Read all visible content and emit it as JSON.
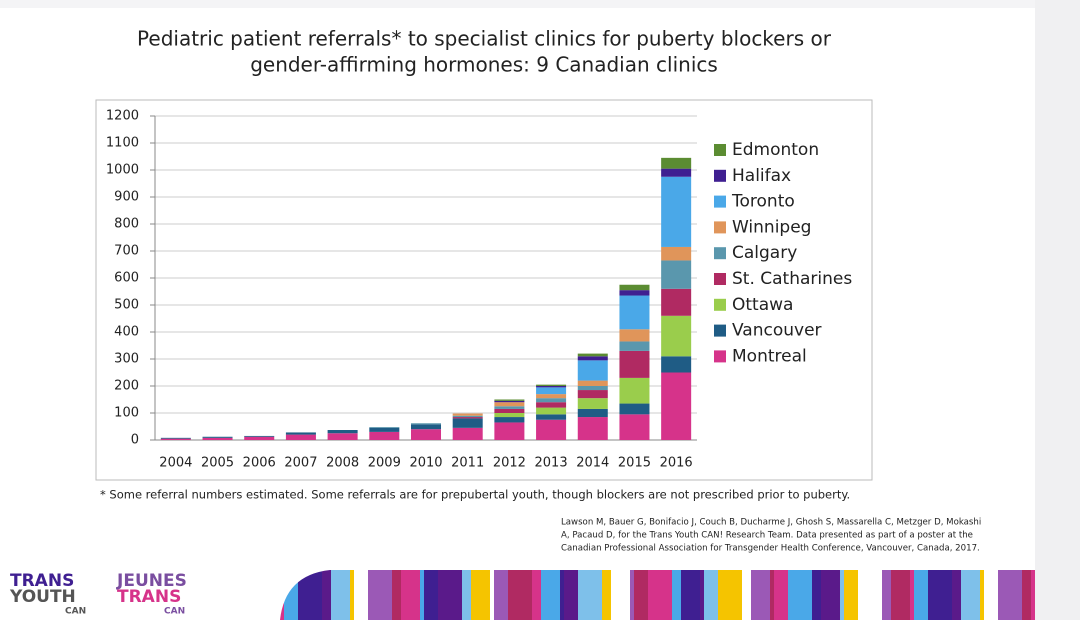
{
  "chart_data": {
    "type": "stacked_bar",
    "title": [
      "Pediatric patient referrals* to specialist clinics for puberty blockers or",
      "gender-affirming hormones: 9 Canadian clinics"
    ],
    "categories": [
      "2004",
      "2005",
      "2006",
      "2007",
      "2008",
      "2009",
      "2010",
      "2011",
      "2012",
      "2013",
      "2014",
      "2015",
      "2016"
    ],
    "series": [
      {
        "name": "Montreal",
        "color": "#d6338a",
        "values": [
          5,
          8,
          12,
          20,
          25,
          30,
          40,
          45,
          65,
          75,
          85,
          95,
          250
        ]
      },
      {
        "name": "Vancouver",
        "color": "#1f5c85",
        "values": [
          3,
          4,
          3,
          8,
          12,
          15,
          18,
          35,
          20,
          20,
          30,
          40,
          60
        ]
      },
      {
        "name": "Ottawa",
        "color": "#9acd4c",
        "values": [
          0,
          0,
          0,
          0,
          0,
          0,
          0,
          0,
          15,
          25,
          40,
          95,
          150
        ]
      },
      {
        "name": "St. Catharines",
        "color": "#b02a62",
        "values": [
          0,
          0,
          0,
          0,
          0,
          0,
          0,
          5,
          15,
          20,
          30,
          100,
          100
        ]
      },
      {
        "name": "Calgary",
        "color": "#5a97ad",
        "values": [
          0,
          0,
          0,
          0,
          0,
          3,
          4,
          5,
          10,
          15,
          15,
          35,
          105
        ]
      },
      {
        "name": "Winnipeg",
        "color": "#e0955a",
        "values": [
          0,
          0,
          0,
          0,
          0,
          0,
          0,
          8,
          15,
          15,
          20,
          45,
          50
        ]
      },
      {
        "name": "Toronto",
        "color": "#4aa8e8",
        "values": [
          0,
          0,
          0,
          0,
          0,
          0,
          0,
          0,
          0,
          25,
          75,
          125,
          260
        ]
      },
      {
        "name": "Halifax",
        "color": "#3f1f91",
        "values": [
          0,
          0,
          0,
          0,
          0,
          0,
          0,
          0,
          5,
          5,
          15,
          20,
          30
        ]
      },
      {
        "name": "Edmonton",
        "color": "#5b8c32",
        "values": [
          0,
          0,
          0,
          0,
          0,
          0,
          0,
          0,
          5,
          5,
          10,
          20,
          40
        ]
      }
    ],
    "ylim": [
      0,
      1200
    ],
    "yticks": [
      0,
      100,
      200,
      300,
      400,
      500,
      600,
      700,
      800,
      900,
      1000,
      1100,
      1200
    ],
    "grid": true,
    "legend": "right",
    "footnote": "* Some referral numbers estimated. Some referrals are for prepubertal youth, though blockers are not prescribed prior to puberty.",
    "citation": [
      "Lawson M, Bauer G, Bonifacio J, Couch B, Ducharme J, Ghosh S, Massarella C, Metzger D, Mokashi",
      "A, Pacaud D, for the Trans Youth CAN! Research Team. Data presented as part of a poster at the",
      "Canadian Professional Association for Transgender Health Conference, Vancouver, Canada, 2017."
    ]
  },
  "logo": {
    "left": [
      "TRANS",
      "YOUTH",
      "CAN"
    ],
    "right": [
      "JEUNES",
      "TRANS",
      "CAN"
    ]
  }
}
